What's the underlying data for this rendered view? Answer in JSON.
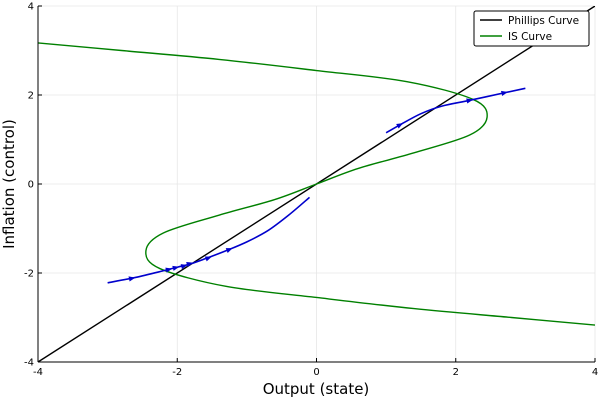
{
  "chart_data": {
    "type": "line",
    "title": "",
    "xlabel": "Output (state)",
    "ylabel": "Inflation (control)",
    "xlim": [
      -4,
      4
    ],
    "ylim": [
      -4,
      4
    ],
    "xticks": [
      -4,
      -2,
      0,
      2,
      4
    ],
    "yticks": [
      -4,
      -2,
      0,
      2,
      4
    ],
    "x_tick_labels": [
      "-4",
      "-2",
      "0",
      "2",
      "4"
    ],
    "y_tick_labels": [
      "-4",
      "-2",
      "0",
      "2",
      "4"
    ],
    "grid": true,
    "legend_position": "top-right",
    "series": [
      {
        "name": "Phillips Curve",
        "color": "#000000",
        "x": [
          -4,
          4
        ],
        "y": [
          -4,
          4
        ]
      },
      {
        "name": "IS Curve",
        "color": "#008000",
        "x": [
          -4.0,
          -2.8,
          -1.4,
          0.0,
          1.3,
          2.25,
          2.45,
          2.2,
          1.4,
          0.6,
          0.0,
          -0.6,
          -1.4,
          -2.2,
          -2.45,
          -2.25,
          -1.3,
          0.0,
          1.4,
          2.8,
          4.0
        ],
        "y": [
          3.17,
          3.0,
          2.8,
          2.55,
          2.3,
          1.9,
          1.5,
          1.1,
          0.7,
          0.35,
          0.0,
          -0.35,
          -0.7,
          -1.1,
          -1.5,
          -1.9,
          -2.3,
          -2.55,
          -2.8,
          -3.0,
          -3.17
        ]
      }
    ],
    "trajectories": [
      {
        "color": "#0000cc",
        "x": [
          1.0,
          1.2,
          1.5,
          1.8,
          2.2,
          2.7,
          3.0
        ],
        "y": [
          1.15,
          1.33,
          1.58,
          1.75,
          1.88,
          2.05,
          2.15
        ],
        "arrow_points": [
          [
            1.2,
            1.33
          ],
          [
            2.2,
            1.88
          ],
          [
            2.7,
            2.05
          ]
        ]
      },
      {
        "color": "#0000cc",
        "x": [
          -3.0,
          -2.6,
          -2.2,
          -2.0,
          -1.8,
          -1.6,
          -1.3,
          -1.0,
          -0.7,
          -0.4,
          -0.1
        ],
        "y": [
          -2.22,
          -2.1,
          -1.95,
          -1.87,
          -1.79,
          -1.68,
          -1.5,
          -1.3,
          -1.05,
          -0.7,
          -0.3
        ],
        "arrow_points": [
          [
            -2.65,
            -2.12
          ],
          [
            -2.12,
            -1.92
          ],
          [
            -2.02,
            -1.88
          ],
          [
            -1.9,
            -1.84
          ],
          [
            -1.82,
            -1.79
          ],
          [
            -1.55,
            -1.66
          ],
          [
            -1.25,
            -1.47
          ]
        ]
      }
    ]
  }
}
